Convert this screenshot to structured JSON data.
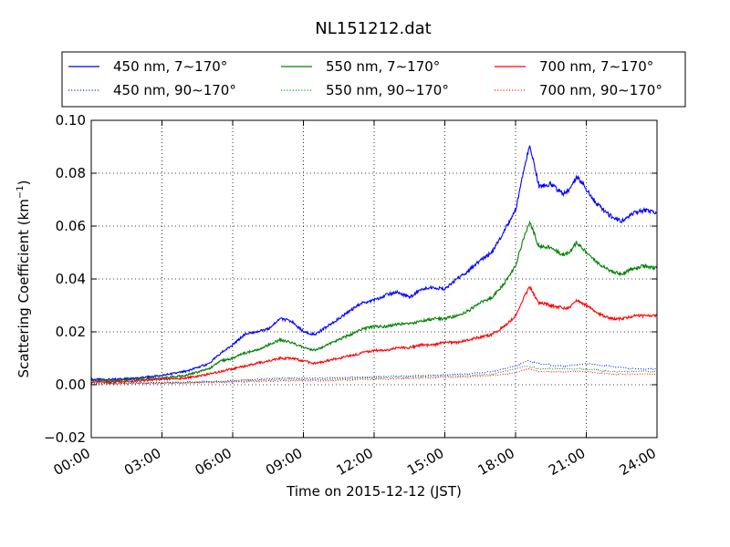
{
  "chart_data": {
    "type": "line",
    "title": "NL151212.dat",
    "xlabel": "Time on 2015-12-12 (JST)",
    "ylabel_main": "Scattering Coefficient (km",
    "ylabel_sup": "−1",
    "ylabel_end": ")",
    "xlim": [
      0,
      24
    ],
    "ylim": [
      -0.02,
      0.1
    ],
    "x_ticks": [
      {
        "value": 0,
        "label": "00:00"
      },
      {
        "value": 3,
        "label": "03:00"
      },
      {
        "value": 6,
        "label": "06:00"
      },
      {
        "value": 9,
        "label": "09:00"
      },
      {
        "value": 12,
        "label": "12:00"
      },
      {
        "value": 15,
        "label": "15:00"
      },
      {
        "value": 18,
        "label": "18:00"
      },
      {
        "value": 21,
        "label": "21:00"
      },
      {
        "value": 24,
        "label": "24:00"
      }
    ],
    "y_ticks": [
      {
        "value": -0.02,
        "label": "−0.02"
      },
      {
        "value": 0.0,
        "label": "0.00"
      },
      {
        "value": 0.02,
        "label": "0.02"
      },
      {
        "value": 0.04,
        "label": "0.04"
      },
      {
        "value": 0.06,
        "label": "0.06"
      },
      {
        "value": 0.08,
        "label": "0.08"
      },
      {
        "value": 0.1,
        "label": "0.10"
      }
    ],
    "grid": true,
    "legend_position": "top (above plot), 3 columns",
    "series": [
      {
        "name": "450 nm, 7∼170°",
        "color": "#0000ff",
        "style": "solid",
        "x": [
          0,
          1,
          2,
          3,
          4,
          5,
          5.5,
          6,
          6.5,
          7,
          7.5,
          8,
          8.5,
          9,
          9.5,
          10,
          10.5,
          11,
          11.5,
          12,
          12.5,
          13,
          13.5,
          14,
          14.5,
          15,
          15.5,
          16,
          16.5,
          17,
          17.5,
          18,
          18.3,
          18.6,
          19,
          19.5,
          20,
          20.3,
          20.6,
          21,
          21.5,
          22,
          22.5,
          23,
          23.5,
          24
        ],
        "y": [
          0.002,
          0.002,
          0.0025,
          0.0035,
          0.005,
          0.008,
          0.012,
          0.015,
          0.019,
          0.02,
          0.021,
          0.025,
          0.024,
          0.02,
          0.019,
          0.022,
          0.025,
          0.028,
          0.031,
          0.032,
          0.034,
          0.035,
          0.033,
          0.036,
          0.037,
          0.036,
          0.04,
          0.043,
          0.047,
          0.05,
          0.058,
          0.066,
          0.079,
          0.091,
          0.075,
          0.076,
          0.072,
          0.074,
          0.079,
          0.074,
          0.068,
          0.064,
          0.062,
          0.065,
          0.066,
          0.065
        ]
      },
      {
        "name": "550 nm, 7∼170°",
        "color": "#008000",
        "style": "solid",
        "x": [
          0,
          1,
          2,
          3,
          4,
          5,
          5.5,
          6,
          6.5,
          7,
          7.5,
          8,
          8.5,
          9,
          9.5,
          10,
          10.5,
          11,
          11.5,
          12,
          12.5,
          13,
          13.5,
          14,
          14.5,
          15,
          15.5,
          16,
          16.5,
          17,
          17.5,
          18,
          18.3,
          18.6,
          19,
          19.5,
          20,
          20.3,
          20.6,
          21,
          21.5,
          22,
          22.5,
          23,
          23.5,
          24
        ],
        "y": [
          0.0015,
          0.0015,
          0.002,
          0.0025,
          0.0035,
          0.006,
          0.009,
          0.01,
          0.012,
          0.013,
          0.015,
          0.017,
          0.016,
          0.014,
          0.013,
          0.015,
          0.017,
          0.019,
          0.021,
          0.022,
          0.022,
          0.023,
          0.023,
          0.024,
          0.025,
          0.025,
          0.026,
          0.028,
          0.031,
          0.033,
          0.038,
          0.045,
          0.054,
          0.062,
          0.052,
          0.052,
          0.049,
          0.05,
          0.054,
          0.05,
          0.046,
          0.043,
          0.042,
          0.044,
          0.045,
          0.044
        ]
      },
      {
        "name": "700 nm, 7∼170°",
        "color": "#ff0000",
        "style": "solid",
        "x": [
          0,
          1,
          2,
          3,
          4,
          5,
          5.5,
          6,
          6.5,
          7,
          7.5,
          8,
          8.5,
          9,
          9.5,
          10,
          10.5,
          11,
          11.5,
          12,
          12.5,
          13,
          13.5,
          14,
          14.5,
          15,
          15.5,
          16,
          16.5,
          17,
          17.5,
          18,
          18.3,
          18.6,
          19,
          19.5,
          20,
          20.3,
          20.6,
          21,
          21.5,
          22,
          22.5,
          23,
          23.5,
          24
        ],
        "y": [
          0.001,
          0.001,
          0.0015,
          0.002,
          0.0025,
          0.004,
          0.005,
          0.006,
          0.007,
          0.008,
          0.009,
          0.01,
          0.01,
          0.009,
          0.008,
          0.009,
          0.01,
          0.011,
          0.012,
          0.013,
          0.013,
          0.014,
          0.014,
          0.015,
          0.015,
          0.016,
          0.016,
          0.017,
          0.018,
          0.019,
          0.022,
          0.026,
          0.032,
          0.037,
          0.031,
          0.03,
          0.029,
          0.029,
          0.032,
          0.03,
          0.027,
          0.025,
          0.025,
          0.026,
          0.026,
          0.026
        ]
      },
      {
        "name": "450 nm, 90∼170°",
        "color": "#0000ff",
        "style": "dotted",
        "x": [
          0,
          2,
          4,
          6,
          8,
          10,
          12,
          14,
          16,
          17,
          18,
          18.5,
          19,
          20,
          21,
          22,
          23,
          24
        ],
        "y": [
          0.0005,
          0.0007,
          0.001,
          0.0015,
          0.0025,
          0.0025,
          0.003,
          0.0035,
          0.004,
          0.005,
          0.007,
          0.009,
          0.008,
          0.007,
          0.008,
          0.007,
          0.006,
          0.006
        ]
      },
      {
        "name": "550 nm, 90∼170°",
        "color": "#008000",
        "style": "dotted",
        "x": [
          0,
          2,
          4,
          6,
          8,
          10,
          12,
          14,
          16,
          17,
          18,
          18.5,
          19,
          20,
          21,
          22,
          23,
          24
        ],
        "y": [
          0.0003,
          0.0005,
          0.0008,
          0.0012,
          0.002,
          0.002,
          0.0025,
          0.003,
          0.0035,
          0.004,
          0.006,
          0.007,
          0.006,
          0.006,
          0.006,
          0.005,
          0.005,
          0.005
        ]
      },
      {
        "name": "700 nm, 90∼170°",
        "color": "#ff0000",
        "style": "dotted",
        "x": [
          0,
          2,
          4,
          6,
          8,
          10,
          12,
          14,
          16,
          17,
          18,
          18.5,
          19,
          20,
          21,
          22,
          23,
          24
        ],
        "y": [
          0.0002,
          0.0004,
          0.0006,
          0.001,
          0.0015,
          0.0015,
          0.002,
          0.0025,
          0.003,
          0.0035,
          0.0045,
          0.006,
          0.005,
          0.005,
          0.005,
          0.004,
          0.004,
          0.004
        ]
      }
    ]
  }
}
